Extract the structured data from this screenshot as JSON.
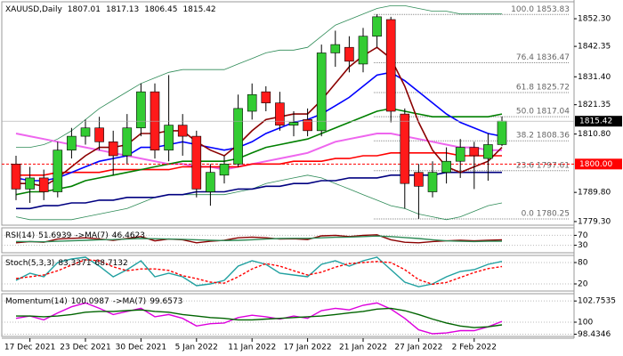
{
  "chart_data": [
    {
      "type": "candlestick",
      "title": "XAUUSD,Daily",
      "categories": [
        null,
        "17 Dec 2021",
        null,
        null,
        null,
        "23 Dec 2021",
        null,
        null,
        null,
        "30 Dec 2021",
        null,
        null,
        null,
        "5 Jan 2022",
        null,
        null,
        null,
        "11 Jan 2022",
        null,
        null,
        null,
        "17 Jan 2022",
        null,
        null,
        null,
        "21 Jan 2022",
        null,
        null,
        null,
        "27 Jan 2022",
        null,
        null,
        null,
        "2 Feb 2022",
        null,
        null
      ],
      "open": [
        1800,
        1791,
        1795,
        1790,
        1805,
        1810,
        1813,
        1808,
        1803,
        1813,
        1826,
        1805,
        1814,
        1810,
        1790,
        1796,
        1800,
        1819,
        1826,
        1822,
        1814,
        1816,
        1812,
        1840,
        1842,
        1836,
        1846,
        1852,
        1818,
        1797,
        1790,
        1797,
        1801,
        1806,
        1802,
        1807.01
      ],
      "high": [
        1803,
        1799,
        1798,
        1808,
        1813,
        1816,
        1817,
        1812,
        1818,
        1829,
        1829,
        1832,
        1818,
        1812,
        1800,
        1803,
        1825,
        1829,
        1828,
        1826,
        1819,
        1820,
        1843,
        1848,
        1846,
        1849,
        1853.83,
        1853,
        1820,
        1800,
        1801,
        1806,
        1809,
        1808,
        1811,
        1817.13
      ],
      "low": [
        1787,
        1786,
        1787,
        1788,
        1802,
        1807,
        1805,
        1796,
        1800,
        1810,
        1802,
        1801,
        1803,
        1788,
        1785,
        1793,
        1799,
        1816,
        1819,
        1812,
        1810,
        1810,
        1810,
        1835,
        1833,
        1833,
        1842,
        1815,
        1784,
        1780.25,
        1788,
        1793,
        1795,
        1791,
        1794,
        1806.45
      ],
      "close": [
        1791,
        1795,
        1790,
        1805,
        1810,
        1813,
        1808,
        1803,
        1813,
        1826,
        1805,
        1814,
        1810,
        1791,
        1797,
        1800,
        1820,
        1825,
        1822,
        1814,
        1815,
        1812,
        1840,
        1843,
        1837,
        1846,
        1853,
        1819,
        1793,
        1792,
        1797,
        1801,
        1806,
        1803,
        1807,
        1815.42
      ],
      "up_color": "#33cc33",
      "down_color": "#ff1a1a",
      "overlays": [
        {
          "color": "#2e8b57",
          "values": [
            1806,
            1806,
            1807,
            1809,
            1812,
            1816,
            1820,
            1823,
            1826,
            1829,
            1831,
            1833,
            1834,
            1834,
            1834,
            1834,
            1836,
            1838,
            1840,
            1841,
            1841,
            1842,
            1846,
            1850,
            1852,
            1854,
            1856,
            1857,
            1857,
            1856,
            1855,
            1855,
            1854,
            1854,
            1854,
            1854
          ]
        },
        {
          "color": "#2e8b57",
          "values": [
            1781,
            1780,
            1780,
            1780,
            1780,
            1781,
            1782,
            1783,
            1784,
            1786,
            1788,
            1789,
            1789,
            1789,
            1789,
            1789,
            1790,
            1791,
            1793,
            1794,
            1795,
            1796,
            1795,
            1793,
            1791,
            1789,
            1787,
            1785,
            1784,
            1782,
            1781,
            1780,
            1781,
            1783,
            1785,
            1786
          ]
        },
        {
          "color": "#ee66ee",
          "values": [
            1811,
            1810,
            1809,
            1808,
            1807,
            1806,
            1805,
            1804,
            1803,
            1802,
            1801,
            1800,
            1800,
            1799,
            1799,
            1798,
            1799,
            1800,
            1801,
            1802,
            1803,
            1804,
            1806,
            1808,
            1809,
            1810,
            1811,
            1811,
            1810,
            1809,
            1808,
            1807,
            1806,
            1806,
            1805,
            1805
          ]
        },
        {
          "color": "#ff0000",
          "values": [
            1796,
            1796,
            1796,
            1797,
            1797,
            1797,
            1797,
            1798,
            1798,
            1798,
            1798,
            1798,
            1799,
            1799,
            1799,
            1799,
            1799,
            1800,
            1800,
            1800,
            1801,
            1801,
            1801,
            1802,
            1802,
            1803,
            1803,
            1804,
            1804,
            1804,
            1804,
            1804,
            1803,
            1803,
            1803,
            1803
          ]
        },
        {
          "color": "#000080",
          "values": [
            1784,
            1784,
            1785,
            1785,
            1786,
            1786,
            1787,
            1787,
            1788,
            1788,
            1788,
            1789,
            1789,
            1790,
            1790,
            1790,
            1791,
            1791,
            1792,
            1792,
            1793,
            1793,
            1794,
            1794,
            1795,
            1795,
            1795,
            1796,
            1796,
            1796,
            1796,
            1797,
            1797,
            1797,
            1797,
            1797
          ]
        },
        {
          "color": "#008000",
          "values": [
            1789,
            1790,
            1790,
            1791,
            1792,
            1794,
            1795,
            1796,
            1797,
            1798,
            1799,
            1800,
            1801,
            1801,
            1801,
            1801,
            1802,
            1804,
            1806,
            1807,
            1808,
            1809,
            1811,
            1813,
            1815,
            1817,
            1819,
            1820,
            1819,
            1818,
            1817,
            1817,
            1817,
            1817,
            1817,
            1818
          ]
        },
        {
          "color": "#0000ff",
          "values": [
            1795,
            1794,
            1794,
            1795,
            1797,
            1799,
            1801,
            1802,
            1803,
            1806,
            1806,
            1807,
            1808,
            1807,
            1806,
            1805,
            1806,
            1808,
            1811,
            1813,
            1815,
            1816,
            1818,
            1821,
            1824,
            1828,
            1832,
            1833,
            1830,
            1826,
            1822,
            1818,
            1815,
            1813,
            1811,
            1810
          ]
        },
        {
          "color": "#8b0000",
          "values": [
            1793,
            1793,
            1792,
            1795,
            1799,
            1803,
            1806,
            1806,
            1807,
            1811,
            1811,
            1812,
            1812,
            1808,
            1805,
            1803,
            1807,
            1812,
            1816,
            1817,
            1818,
            1818,
            1823,
            1829,
            1835,
            1839,
            1842,
            1838,
            1828,
            1815,
            1805,
            1799,
            1797,
            1799,
            1801,
            1806
          ]
        }
      ],
      "fib_levels": [
        {
          "value": 1853.83,
          "label": "100.0 1853.83"
        },
        {
          "value": 1836.47,
          "label": "76.4 1836.47"
        },
        {
          "value": 1825.72,
          "label": "61.8 1825.72"
        },
        {
          "value": 1817.04,
          "label": "50.0 1817.04"
        },
        {
          "value": 1808.36,
          "label": "38.2 1808.36"
        },
        {
          "value": 1797.61,
          "label": "23.6 1797.61"
        },
        {
          "value": 1780.25,
          "label": "0.0 1780.25"
        }
      ],
      "hline": {
        "value": 1800,
        "label": "1800.00",
        "color": "#ff0000"
      },
      "last_price": {
        "value": 1815.42,
        "label": "1815.42"
      },
      "ylim": [
        1778,
        1858.4
      ],
      "yticks": [
        {
          "value": 1852.3,
          "label": "1852.30"
        },
        {
          "value": 1842.35,
          "label": "1842.35"
        },
        {
          "value": 1831.4,
          "label": "1831.40"
        },
        {
          "value": 1821.35,
          "label": "1821.35"
        },
        {
          "value": 1810.8,
          "label": "1810.80"
        },
        {
          "value": 1789.8,
          "label": "1789.80"
        },
        {
          "value": 1779.3,
          "label": "1779.30"
        }
      ]
    },
    {
      "type": "line",
      "ylim": [
        0,
        100
      ],
      "yticks": [
        70,
        30
      ],
      "series": [
        {
          "name": "RSI(14)",
          "color": "#8b0000",
          "values": [
            40,
            45,
            42,
            55,
            58,
            60,
            55,
            50,
            57,
            65,
            48,
            55,
            52,
            40,
            46,
            50,
            60,
            63,
            60,
            55,
            56,
            53,
            68,
            70,
            65,
            70,
            72,
            52,
            42,
            40,
            45,
            48,
            50,
            48,
            50,
            51.6939
          ]
        },
        {
          "name": "->MA(7)",
          "color": "#2e8b57",
          "values": [
            45,
            45,
            44,
            46,
            48,
            50,
            52,
            53,
            55,
            57,
            56,
            55,
            54,
            52,
            50,
            49,
            50,
            52,
            55,
            57,
            58,
            58,
            60,
            62,
            63,
            65,
            67,
            65,
            61,
            57,
            52,
            48,
            46,
            45,
            46,
            46.4623
          ]
        }
      ]
    },
    {
      "type": "line",
      "ylim": [
        0,
        100
      ],
      "yticks": [
        80,
        20
      ],
      "series": [
        {
          "name": "Stoch(5,3,3)",
          "color": "#20a0a0",
          "values": [
            30,
            50,
            40,
            80,
            90,
            95,
            70,
            40,
            60,
            85,
            40,
            50,
            40,
            15,
            20,
            30,
            70,
            85,
            75,
            50,
            45,
            40,
            75,
            85,
            70,
            85,
            95,
            60,
            25,
            12,
            20,
            40,
            55,
            60,
            75,
            83.3371
          ]
        },
        {
          "color": "#ff0000",
          "dash": true,
          "values": [
            35,
            40,
            45,
            57,
            73,
            88,
            85,
            68,
            57,
            62,
            62,
            58,
            43,
            35,
            25,
            22,
            40,
            62,
            77,
            70,
            57,
            45,
            53,
            67,
            77,
            80,
            83,
            80,
            60,
            32,
            19,
            24,
            38,
            52,
            63,
            68.7132
          ]
        }
      ]
    },
    {
      "type": "line",
      "ylim": [
        98.15,
        103.7
      ],
      "yticks": [
        102.7535,
        100,
        98.4346
      ],
      "series": [
        {
          "name": "Momentum(14)",
          "color": "#dd00dd",
          "values": [
            100.5,
            100.8,
            100.3,
            101.2,
            102,
            102.5,
            101.8,
            101,
            101.4,
            101.8,
            100.7,
            101,
            100.5,
            99.5,
            99.8,
            99.9,
            100.6,
            100.9,
            100.7,
            100.4,
            100.8,
            100.5,
            101.5,
            101.8,
            101.6,
            102.2,
            102.5,
            101.7,
            100.5,
            99,
            98.5,
            98.6,
            98.9,
            98.9,
            99.4,
            100.0987
          ]
        },
        {
          "name": "->MA(7)",
          "color": "#006400",
          "values": [
            100.8,
            100.8,
            100.7,
            100.8,
            101,
            101.3,
            101.4,
            101.4,
            101.5,
            101.6,
            101.4,
            101.3,
            101,
            100.8,
            100.6,
            100.5,
            100.3,
            100.3,
            100.4,
            100.5,
            100.6,
            100.7,
            100.8,
            101,
            101.2,
            101.4,
            101.7,
            101.8,
            101.5,
            101,
            100.4,
            99.9,
            99.5,
            99.3,
            99.4,
            99.6573
          ]
        }
      ]
    }
  ]
}
